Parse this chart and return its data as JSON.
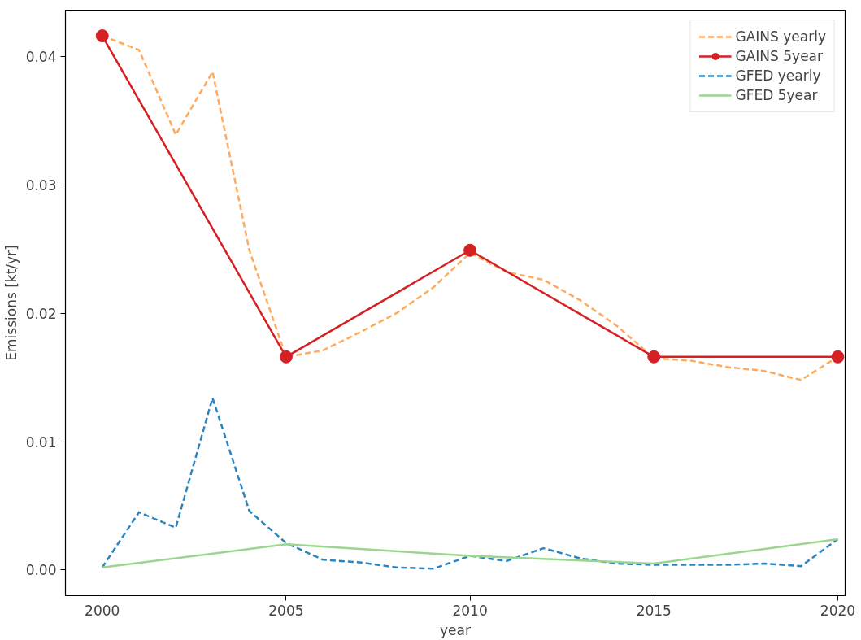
{
  "chart_data": {
    "type": "line",
    "xlabel": "year",
    "ylabel": "Emissions [kt/yr]",
    "x": [
      2000,
      2001,
      2002,
      2003,
      2004,
      2005,
      2006,
      2007,
      2008,
      2009,
      2010,
      2011,
      2012,
      2013,
      2014,
      2015,
      2016,
      2017,
      2018,
      2019,
      2020
    ],
    "series": [
      {
        "name": "GAINS yearly",
        "color": "#ffaa5c",
        "line_style": "dashed",
        "marker": "none",
        "values": [
          0.0416,
          0.0405,
          0.0339,
          0.0388,
          0.0249,
          0.0166,
          0.0171,
          0.0185,
          0.02,
          0.022,
          0.0247,
          0.0232,
          0.0226,
          0.021,
          0.019,
          0.0165,
          0.0163,
          0.0158,
          0.0155,
          0.0148,
          0.0166
        ]
      },
      {
        "name": "GAINS 5year",
        "color": "#d62024",
        "line_style": "solid",
        "marker": "circle",
        "x": [
          2000,
          2005,
          2010,
          2015,
          2020
        ],
        "values": [
          0.0416,
          0.0166,
          0.0249,
          0.0166,
          0.0166
        ]
      },
      {
        "name": "GFED yearly",
        "color": "#2b86c0",
        "line_style": "dashed",
        "marker": "none",
        "values": [
          0.0002,
          0.0045,
          0.0033,
          0.0134,
          0.0046,
          0.0021,
          0.0008,
          0.0006,
          0.0002,
          0.0001,
          0.0011,
          0.0007,
          0.0017,
          0.0009,
          0.0005,
          0.0004,
          0.0004,
          0.0004,
          0.0005,
          0.0003,
          0.0024
        ]
      },
      {
        "name": "GFED 5year",
        "color": "#9bd68f",
        "line_style": "solid",
        "marker": "none",
        "x": [
          2000,
          2005,
          2010,
          2015,
          2020
        ],
        "values": [
          0.0002,
          0.002,
          0.0011,
          0.0005,
          0.0024
        ]
      }
    ],
    "xlim": [
      1999.0,
      2020.2
    ],
    "ylim": [
      -0.002,
      0.0436
    ],
    "xticks": [
      2000,
      2005,
      2010,
      2015,
      2020
    ],
    "yticks": [
      {
        "value": 0,
        "label": "0.00"
      },
      {
        "value": 0.01,
        "label": "0.01"
      },
      {
        "value": 0.02,
        "label": "0.02"
      },
      {
        "value": 0.03,
        "label": "0.03"
      },
      {
        "value": 0.04,
        "label": "0.04"
      }
    ],
    "grid": false,
    "legend": "top right"
  }
}
